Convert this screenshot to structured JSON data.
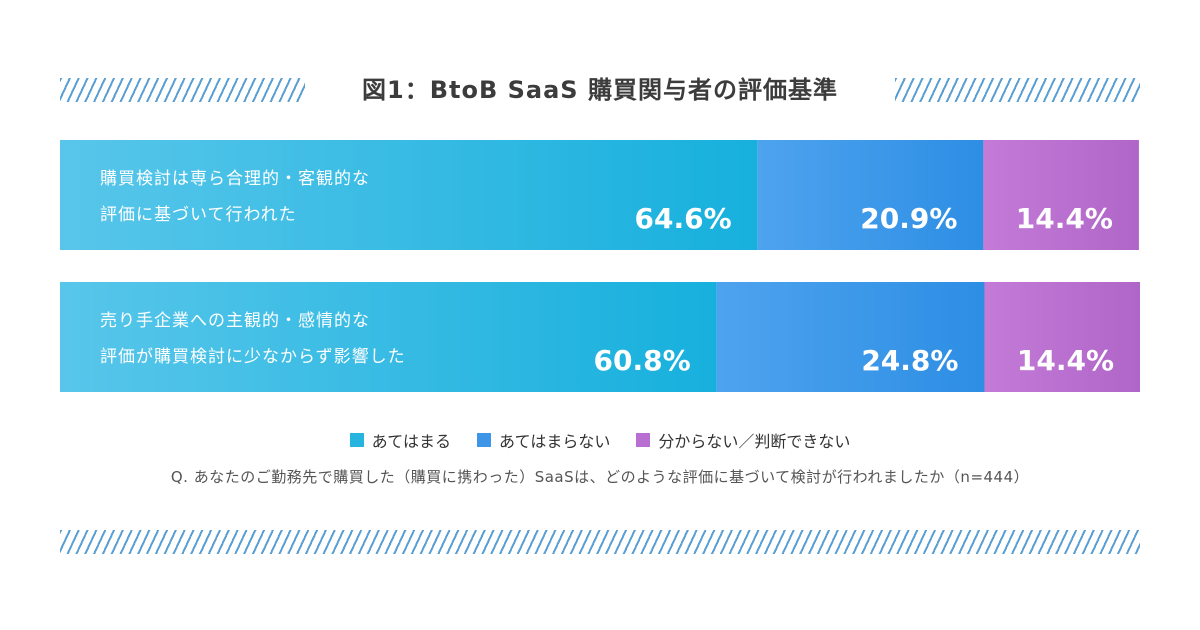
{
  "chart_data": {
    "type": "bar",
    "stacked": true,
    "orientation": "horizontal",
    "title": "図1：BtoB SaaS 購買関与者の評価基準",
    "categories": [
      [
        "購買検討は専ら合理的・客観的な",
        "評価に基づいて行われた"
      ],
      [
        "売り手企業への主観的・感情的な",
        "評価が購買検討に少なからず影響した"
      ]
    ],
    "series": [
      {
        "name": "あてはまる",
        "values": [
          64.6,
          60.8
        ],
        "labels": [
          "64.6%",
          "60.8%"
        ],
        "color": "#27b5e0"
      },
      {
        "name": "あてはまらない",
        "values": [
          20.9,
          24.8
        ],
        "labels": [
          "20.9%",
          "24.8%"
        ],
        "color": "#3e94e6"
      },
      {
        "name": "分からない／判断できない",
        "values": [
          14.4,
          14.4
        ],
        "labels": [
          "14.4%",
          "14.4%"
        ],
        "color": "#b86fd1"
      }
    ],
    "xlim": [
      0,
      100
    ],
    "legend": "bottom-center"
  },
  "footnote": "Q. あなたのご勤務先で購買した（購買に携わった）SaaSは、どのような評価に基づいて検討が行われましたか（n=444）"
}
